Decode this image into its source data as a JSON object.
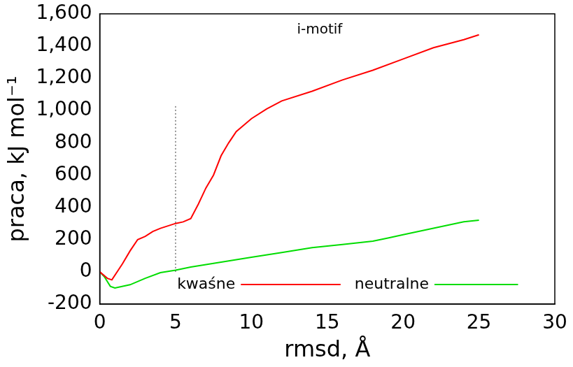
{
  "chart_data": {
    "type": "line",
    "x_label": "rmsd, Å",
    "y_label": "praca, kJ mol⁻¹",
    "xlim": [
      0,
      30
    ],
    "xticks": [
      0,
      5,
      10,
      15,
      20,
      25,
      30
    ],
    "ylim": [
      -200,
      1600
    ],
    "yticks": [
      -200,
      0,
      200,
      400,
      600,
      800,
      1000,
      1200,
      1400,
      1600
    ],
    "grid": false,
    "legend": "bottom",
    "series": [
      {
        "name": "kwaśne",
        "color": "#ff0000",
        "line_style": "solid",
        "x": [
          0,
          0.5,
          0.8,
          1.5,
          2,
          2.5,
          3,
          3.5,
          4,
          5,
          5.5,
          6,
          6.5,
          7,
          7.5,
          8,
          8.5,
          9,
          10,
          11,
          12,
          14,
          16,
          18,
          20,
          22,
          24,
          25
        ],
        "values": [
          0,
          -40,
          -50,
          50,
          130,
          200,
          220,
          250,
          270,
          300,
          310,
          330,
          420,
          520,
          600,
          720,
          800,
          870,
          950,
          1010,
          1060,
          1120,
          1190,
          1250,
          1320,
          1390,
          1440,
          1470
        ]
      },
      {
        "name": "neutralne",
        "color": "#00dd00",
        "line_style": "solid",
        "x": [
          0,
          0.3,
          0.7,
          1,
          2,
          3,
          4,
          5,
          6,
          8,
          10,
          12,
          14,
          16,
          18,
          19,
          20,
          22,
          24,
          25
        ],
        "values": [
          0,
          -30,
          -90,
          -100,
          -80,
          -40,
          -5,
          10,
          30,
          60,
          90,
          120,
          150,
          170,
          190,
          210,
          230,
          270,
          310,
          320
        ]
      }
    ],
    "reference_lines": [
      {
        "x": 5,
        "y_from": 0,
        "y_to": 1030,
        "line_style": "dotted"
      }
    ],
    "annotations": [
      {
        "text": "i-motif",
        "x": 14.5,
        "y": 1500
      }
    ]
  }
}
